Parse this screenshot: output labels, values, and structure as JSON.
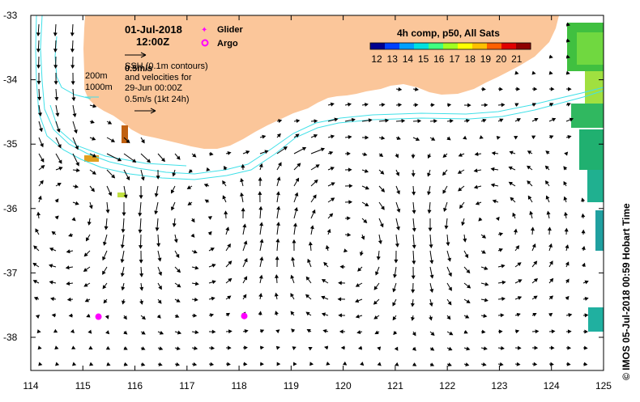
{
  "map": {
    "date": "01-Jul-2018",
    "time": "12:00Z",
    "legend_glider": "Glider",
    "legend_argo": "Argo",
    "ref_arrow_label": "0.5m/s",
    "ssh_text": "SSH (0.1m contours)",
    "velocities_text": "and velocities for",
    "velocity_date": "29-Jun 00:00Z",
    "velocity_scale": "0.5m/s (1kt 24h)",
    "isobath_200": "200m",
    "isobath_1000": "1000m",
    "colorbar_title": "4h comp, p50, All Sats",
    "colorbar_ticks": [
      "12",
      "13",
      "14",
      "15",
      "16",
      "17",
      "18",
      "19",
      "20",
      "21"
    ],
    "colorbar_colors": [
      "#00008f",
      "#0040ff",
      "#00a0ff",
      "#00e0e0",
      "#40ff80",
      "#a0ff20",
      "#ffff00",
      "#ffc000",
      "#ff6000",
      "#e00000",
      "#8f0000"
    ],
    "y_ticks": [
      "-33",
      "-34",
      "-35",
      "-36",
      "-37",
      "-38"
    ],
    "x_ticks": [
      "114",
      "115",
      "116",
      "117",
      "118",
      "119",
      "120",
      "121",
      "122",
      "123",
      "124",
      "125"
    ],
    "side_credit": "© IMOS 05-Jul-2018 00:59 Hobart Time",
    "land_color": "#fbc69a",
    "contour_color": "#40e0e8",
    "marker_color": "#ff00ff",
    "argo_floats": [
      {
        "lon": 115.3,
        "lat": -37.68
      },
      {
        "lon": 118.1,
        "lat": -37.67
      }
    ]
  }
}
